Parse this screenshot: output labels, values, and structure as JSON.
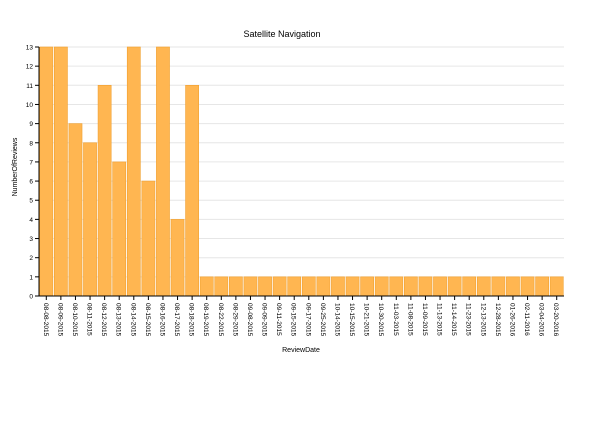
{
  "chart_data": {
    "type": "bar",
    "title": "Satellite Navigation",
    "xlabel": "ReviewDate",
    "ylabel": "NumberOfReviews",
    "ylim": [
      0,
      13
    ],
    "yticks": [
      0,
      1,
      2,
      3,
      4,
      5,
      6,
      7,
      8,
      9,
      10,
      11,
      12,
      13
    ],
    "grid": true,
    "categories": [
      "08-08-2015",
      "08-09-2015",
      "08-10-2015",
      "08-11-2015",
      "08-12-2015",
      "08-13-2015",
      "08-14-2015",
      "08-15-2015",
      "08-16-2015",
      "08-17-2015",
      "08-18-2015",
      "08-19-2015",
      "08-22-2015",
      "08-29-2015",
      "09-08-2015",
      "09-09-2015",
      "09-11-2015",
      "09-15-2015",
      "09-17-2015",
      "09-25-2015",
      "10-14-2015",
      "10-15-2015",
      "10-21-2015",
      "10-30-2015",
      "11-03-2015",
      "11-08-2015",
      "11-09-2015",
      "11-13-2015",
      "11-14-2015",
      "11-23-2015",
      "12-13-2015",
      "12-28-2015",
      "01-26-2016",
      "02-11-2016",
      "03-04-2016",
      "03-20-2016"
    ],
    "values": [
      13,
      13,
      9,
      8,
      11,
      7,
      13,
      6,
      13,
      4,
      11,
      1,
      1,
      1,
      1,
      1,
      1,
      1,
      1,
      1,
      1,
      1,
      1,
      1,
      1,
      1,
      1,
      1,
      1,
      1,
      1,
      1,
      1,
      1,
      1,
      1
    ],
    "colors": {
      "bar": "#ffb651",
      "bar_stroke": "#f0a030",
      "grid": "#e6e6e6"
    }
  }
}
